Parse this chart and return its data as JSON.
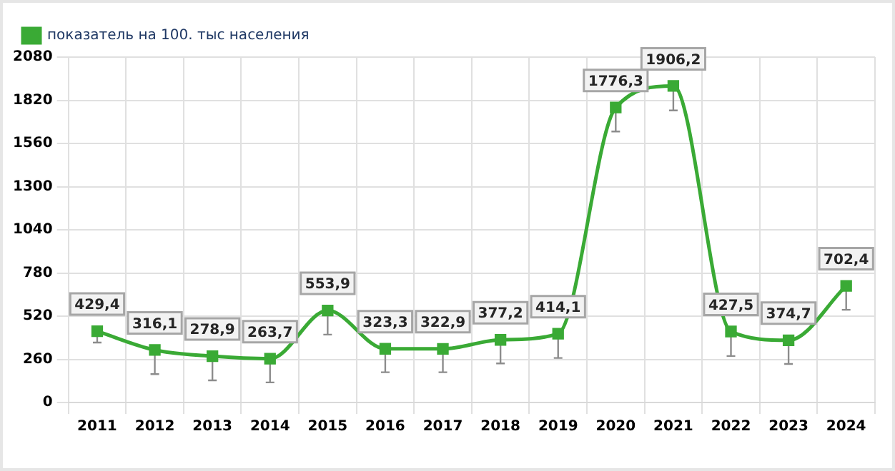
{
  "chart_data": {
    "type": "line",
    "categories": [
      "2011",
      "2012",
      "2013",
      "2014",
      "2015",
      "2016",
      "2017",
      "2018",
      "2019",
      "2020",
      "2021",
      "2022",
      "2023",
      "2024"
    ],
    "series": [
      {
        "name": "показатель на 100. тыс населения",
        "color": "#3aaa35",
        "values": [
          429.4,
          316.1,
          278.9,
          263.7,
          553.9,
          323.3,
          322.9,
          377.2,
          414.1,
          1776.3,
          1906.2,
          427.5,
          374.7,
          702.4
        ],
        "value_labels": [
          "429,4",
          "316,1",
          "278,9",
          "263,7",
          "553,9",
          "323,3",
          "322,9",
          "377,2",
          "414,1",
          "1776,3",
          "1906,2",
          "427,5",
          "374,7",
          "702,4"
        ],
        "errors": [
          [
            361,
            429.4
          ],
          [
            171,
            316.1
          ],
          [
            133,
            278.9
          ],
          [
            121,
            263.7
          ],
          [
            409,
            553.9
          ],
          [
            182,
            323.3
          ],
          [
            182,
            322.9
          ],
          [
            235,
            377.2
          ],
          [
            268,
            414.1
          ],
          [
            1632,
            1776.3
          ],
          [
            1759,
            1906.2
          ],
          [
            280,
            427.5
          ],
          [
            232,
            374.7
          ],
          [
            558,
            702.4
          ]
        ]
      }
    ],
    "ylim": [
      0,
      2080
    ],
    "yticks": [
      0,
      260,
      520,
      780,
      1040,
      1300,
      1560,
      1820,
      2080
    ],
    "grid": true,
    "legend": "top left",
    "marker": "square",
    "line_style": "solid"
  }
}
